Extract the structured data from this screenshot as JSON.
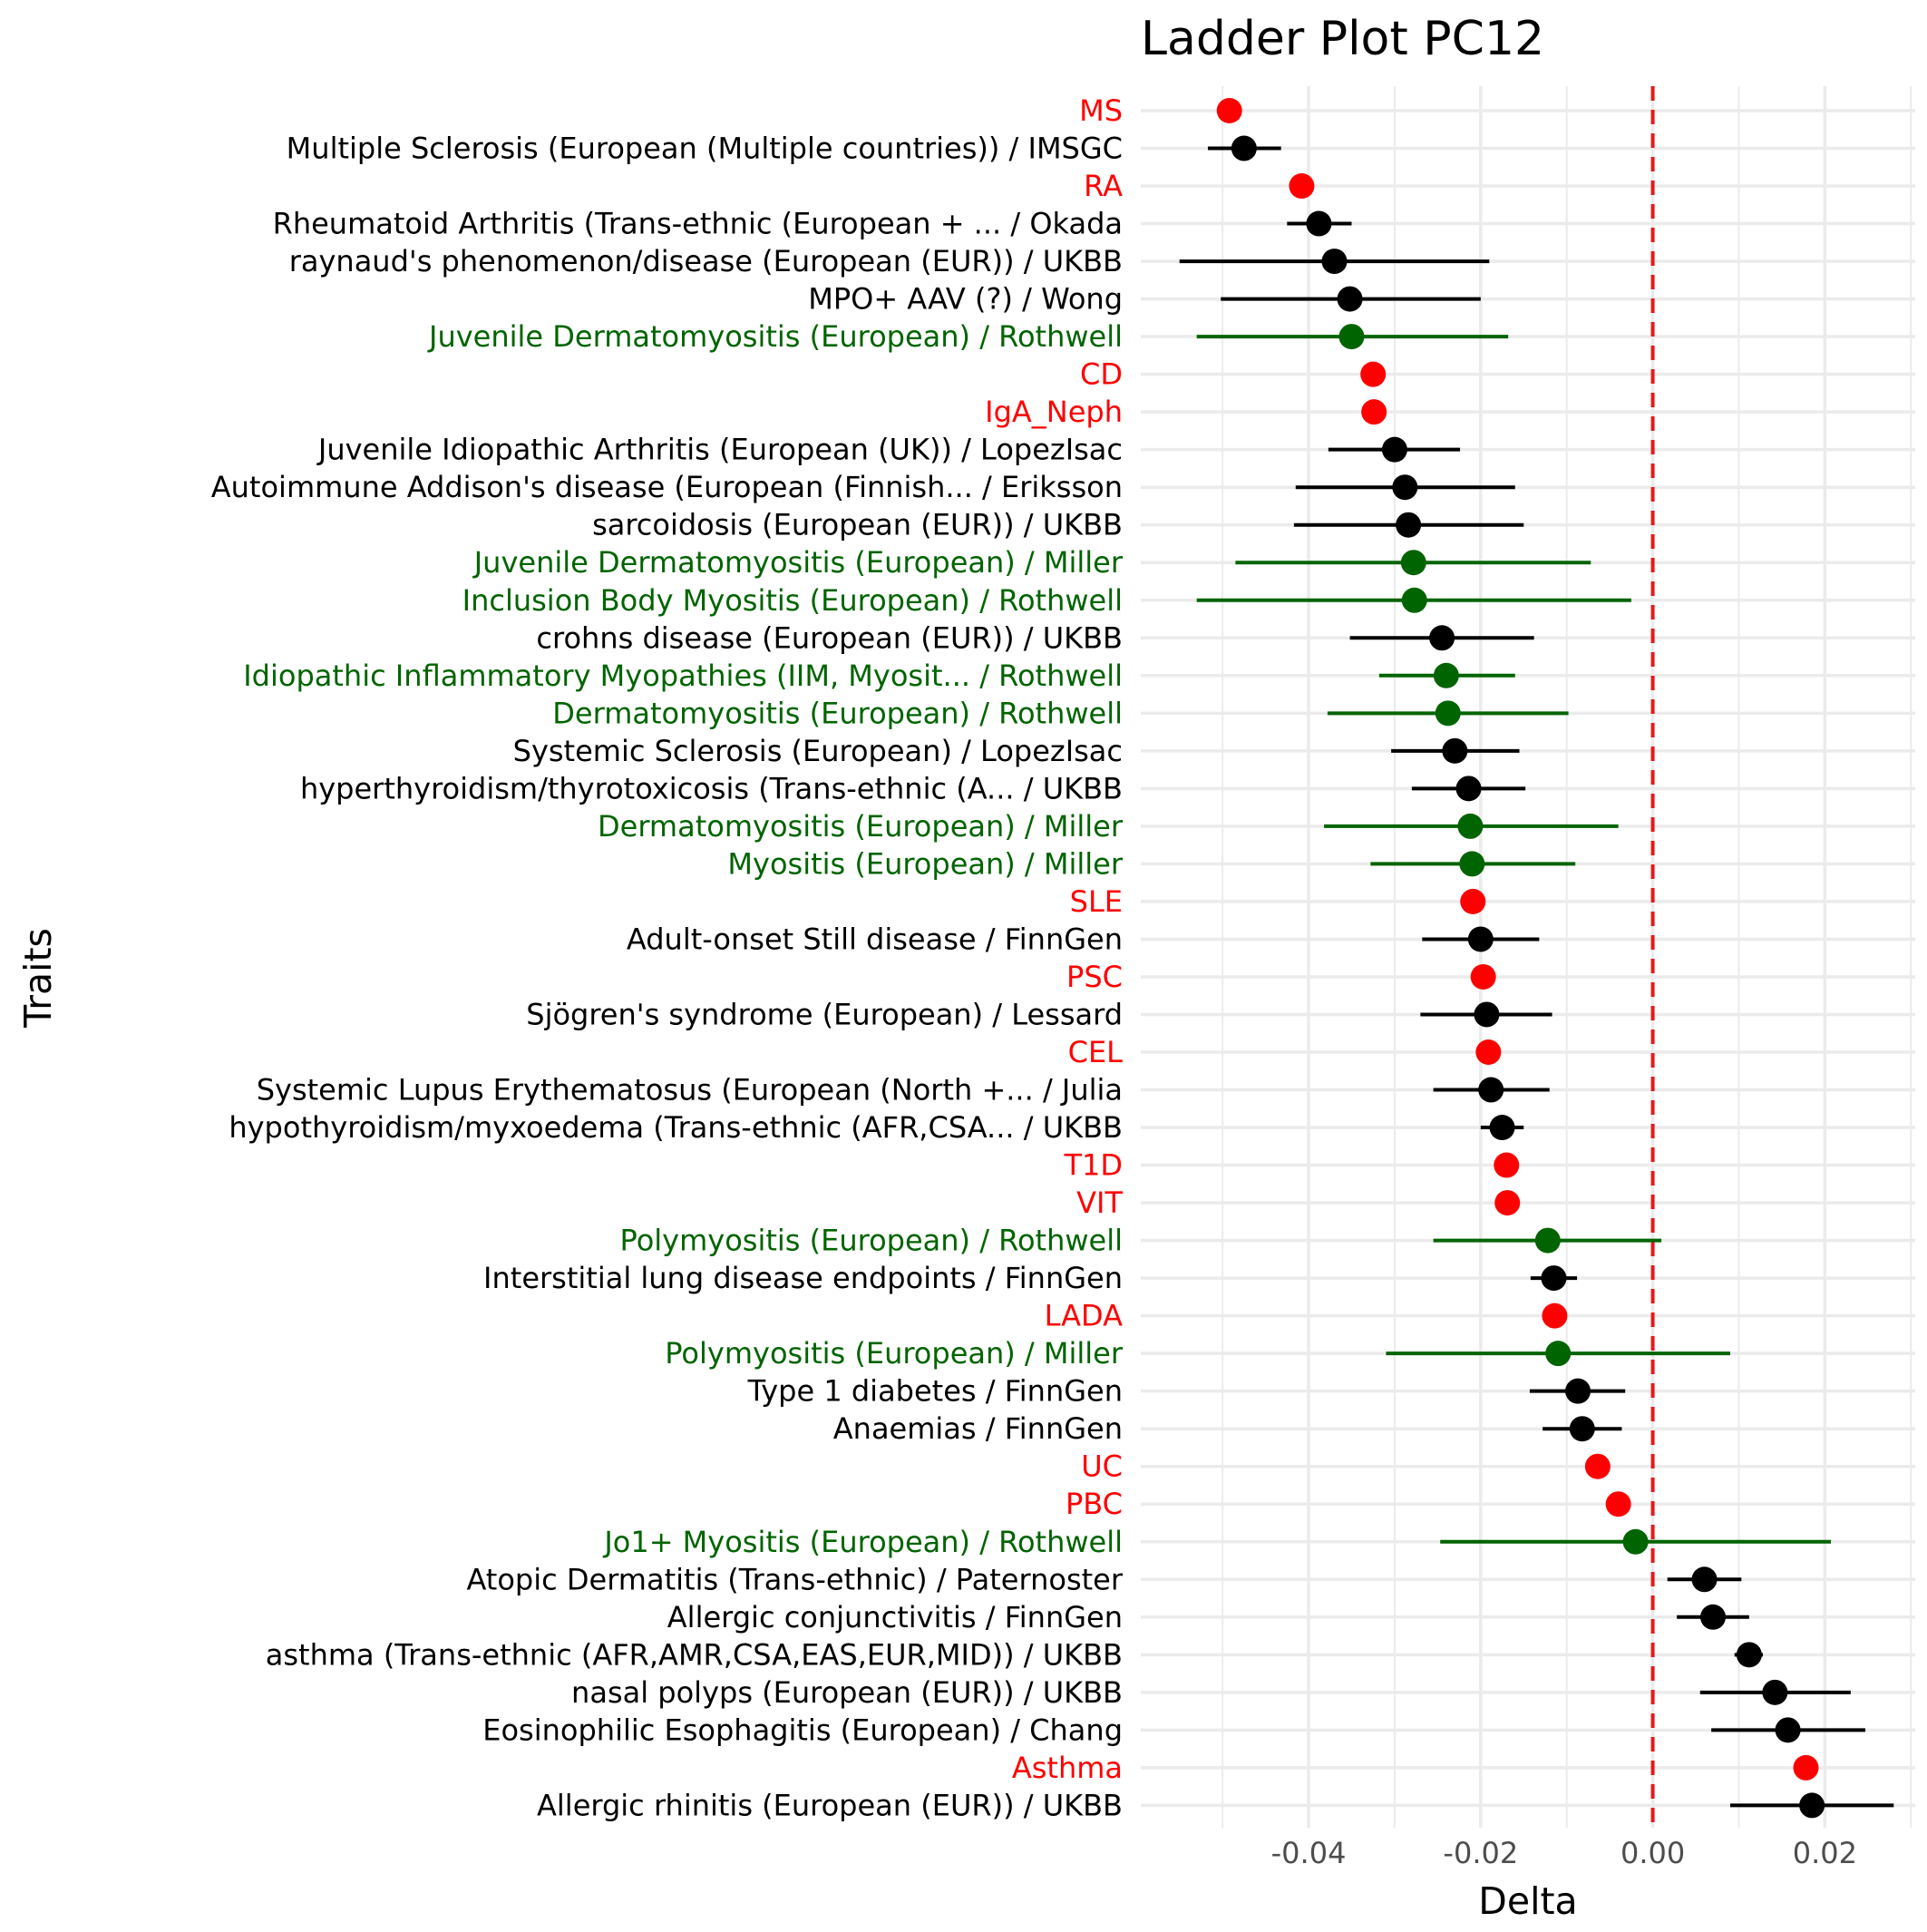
{
  "chart_data": {
    "type": "scatter",
    "title": "Ladder Plot PC12",
    "xlabel": "Delta",
    "ylabel": "Traits",
    "xlim": [
      -0.0595,
      0.0305
    ],
    "x_ticks": [
      "-0.04",
      "-0.02",
      "0.00",
      "0.02"
    ],
    "x_tick_values": [
      -0.04,
      -0.02,
      0.0,
      0.02
    ],
    "reference_line": {
      "x": 0,
      "color": "#e41a1c",
      "style": "dashed"
    },
    "grid": true,
    "legend": "none",
    "group_colors": {
      "reference": "#ff0000",
      "myositis": "#006400",
      "other": "#000000"
    },
    "points": [
      {
        "label": "MS",
        "group": "reference",
        "value": -0.0492,
        "lo": null,
        "hi": null
      },
      {
        "label": "Multiple Sclerosis (European (Multiple countries)) / IMSGC",
        "group": "other",
        "value": -0.0475,
        "lo": -0.0517,
        "hi": -0.0432
      },
      {
        "label": "RA",
        "group": "reference",
        "value": -0.0408,
        "lo": null,
        "hi": null
      },
      {
        "label": "Rheumatoid Arthritis (Trans-ethnic (European + ... / Okada",
        "group": "other",
        "value": -0.0388,
        "lo": -0.0425,
        "hi": -0.035
      },
      {
        "label": "raynaud's phenomenon/disease (European (EUR)) / UKBB",
        "group": "other",
        "value": -0.037,
        "lo": -0.055,
        "hi": -0.019
      },
      {
        "label": "MPO+ AAV (?) / Wong",
        "group": "other",
        "value": -0.0352,
        "lo": -0.0502,
        "hi": -0.02
      },
      {
        "label": "Juvenile Dermatomyositis (European) / Rothwell",
        "group": "myositis",
        "value": -0.035,
        "lo": -0.053,
        "hi": -0.0168
      },
      {
        "label": "CD",
        "group": "reference",
        "value": -0.0325,
        "lo": null,
        "hi": null
      },
      {
        "label": "IgA_Neph",
        "group": "reference",
        "value": -0.0324,
        "lo": null,
        "hi": null
      },
      {
        "label": "Juvenile Idiopathic Arthritis (European (UK)) / LopezIsac",
        "group": "other",
        "value": -0.03,
        "lo": -0.0377,
        "hi": -0.0224
      },
      {
        "label": "Autoimmune Addison's disease (European (Finnish... / Eriksson",
        "group": "other",
        "value": -0.0288,
        "lo": -0.0415,
        "hi": -0.016
      },
      {
        "label": "sarcoidosis (European (EUR)) / UKBB",
        "group": "other",
        "value": -0.0284,
        "lo": -0.0417,
        "hi": -0.015
      },
      {
        "label": "Juvenile Dermatomyositis (European) / Miller",
        "group": "myositis",
        "value": -0.0278,
        "lo": -0.0485,
        "hi": -0.0072
      },
      {
        "label": "Inclusion Body Myositis (European) / Rothwell",
        "group": "myositis",
        "value": -0.0277,
        "lo": -0.053,
        "hi": -0.0025
      },
      {
        "label": "crohns disease (European (EUR)) / UKBB",
        "group": "other",
        "value": -0.0245,
        "lo": -0.0352,
        "hi": -0.0138
      },
      {
        "label": "Idiopathic Inflammatory Myopathies (IIM, Myosit... / Rothwell",
        "group": "myositis",
        "value": -0.024,
        "lo": -0.0318,
        "hi": -0.016
      },
      {
        "label": "Dermatomyositis (European) / Rothwell",
        "group": "myositis",
        "value": -0.0238,
        "lo": -0.0378,
        "hi": -0.0098
      },
      {
        "label": "Systemic Sclerosis (European) / LopezIsac",
        "group": "other",
        "value": -0.023,
        "lo": -0.0304,
        "hi": -0.0155
      },
      {
        "label": "hyperthyroidism/thyrotoxicosis (Trans-ethnic (A... / UKBB",
        "group": "other",
        "value": -0.0214,
        "lo": -0.028,
        "hi": -0.0148
      },
      {
        "label": "Dermatomyositis (European) / Miller",
        "group": "myositis",
        "value": -0.0212,
        "lo": -0.0382,
        "hi": -0.004
      },
      {
        "label": "Myositis (European) / Miller",
        "group": "myositis",
        "value": -0.021,
        "lo": -0.0328,
        "hi": -0.009
      },
      {
        "label": "SLE",
        "group": "reference",
        "value": -0.0209,
        "lo": null,
        "hi": null
      },
      {
        "label": "Adult-onset Still disease / FinnGen",
        "group": "other",
        "value": -0.02,
        "lo": -0.0268,
        "hi": -0.0132
      },
      {
        "label": "PSC",
        "group": "reference",
        "value": -0.0197,
        "lo": null,
        "hi": null
      },
      {
        "label": "Sjögren's syndrome (European) / Lessard",
        "group": "other",
        "value": -0.0193,
        "lo": -0.027,
        "hi": -0.0117
      },
      {
        "label": "CEL",
        "group": "reference",
        "value": -0.0191,
        "lo": null,
        "hi": null
      },
      {
        "label": "Systemic Lupus Erythematosus (European (North +... / Julia",
        "group": "other",
        "value": -0.0188,
        "lo": -0.0255,
        "hi": -0.012
      },
      {
        "label": "hypothyroidism/myxoedema (Trans-ethnic (AFR,CSA... / UKBB",
        "group": "other",
        "value": -0.0175,
        "lo": -0.02,
        "hi": -0.015
      },
      {
        "label": "T1D",
        "group": "reference",
        "value": -0.017,
        "lo": null,
        "hi": null
      },
      {
        "label": "VIT",
        "group": "reference",
        "value": -0.0169,
        "lo": null,
        "hi": null
      },
      {
        "label": "Polymyositis (European) / Rothwell",
        "group": "myositis",
        "value": -0.0122,
        "lo": -0.0255,
        "hi": 0.001
      },
      {
        "label": "Interstitial lung disease endpoints / FinnGen",
        "group": "other",
        "value": -0.0115,
        "lo": -0.0142,
        "hi": -0.0088
      },
      {
        "label": "LADA",
        "group": "reference",
        "value": -0.0114,
        "lo": null,
        "hi": null
      },
      {
        "label": "Polymyositis (European) / Miller",
        "group": "myositis",
        "value": -0.011,
        "lo": -0.031,
        "hi": 0.009
      },
      {
        "label": "Type 1 diabetes / FinnGen",
        "group": "other",
        "value": -0.0087,
        "lo": -0.0143,
        "hi": -0.0032
      },
      {
        "label": "Anaemias / FinnGen",
        "group": "other",
        "value": -0.0082,
        "lo": -0.0128,
        "hi": -0.0036
      },
      {
        "label": "UC",
        "group": "reference",
        "value": -0.0064,
        "lo": null,
        "hi": null
      },
      {
        "label": "PBC",
        "group": "reference",
        "value": -0.004,
        "lo": null,
        "hi": null
      },
      {
        "label": "Jo1+ Myositis (European) / Rothwell",
        "group": "myositis",
        "value": -0.002,
        "lo": -0.0247,
        "hi": 0.0207
      },
      {
        "label": "Atopic Dermatitis (Trans-ethnic) / Paternoster",
        "group": "other",
        "value": 0.006,
        "lo": 0.0017,
        "hi": 0.0103
      },
      {
        "label": "Allergic conjunctivitis / FinnGen",
        "group": "other",
        "value": 0.007,
        "lo": 0.0028,
        "hi": 0.0112
      },
      {
        "label": "asthma (Trans-ethnic (AFR,AMR,CSA,EAS,EUR,MID)) / UKBB",
        "group": "other",
        "value": 0.0112,
        "lo": 0.0095,
        "hi": 0.0128
      },
      {
        "label": "nasal polyps (European (EUR)) / UKBB",
        "group": "other",
        "value": 0.0142,
        "lo": 0.0055,
        "hi": 0.023
      },
      {
        "label": "Eosinophilic Esophagitis (European) / Chang",
        "group": "other",
        "value": 0.0157,
        "lo": 0.0068,
        "hi": 0.0247
      },
      {
        "label": "Asthma",
        "group": "reference",
        "value": 0.0178,
        "lo": null,
        "hi": null
      },
      {
        "label": "Allergic rhinitis (European (EUR)) / UKBB",
        "group": "other",
        "value": 0.0185,
        "lo": 0.009,
        "hi": 0.028
      }
    ]
  }
}
